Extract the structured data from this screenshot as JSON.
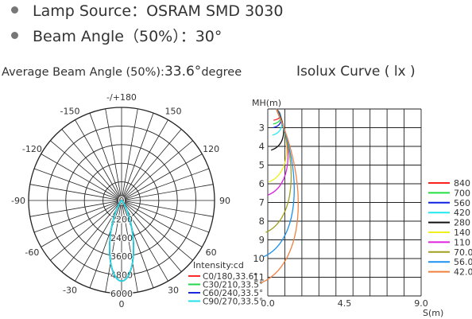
{
  "specs": {
    "lamp_source": "Lamp Source：OSRAM SMD 3030",
    "beam_angle": "Beam Angle（50%）：30°"
  },
  "headings": {
    "avg_beam_label": "Average Beam Angle (50%):",
    "avg_beam_value": "33.6°",
    "avg_beam_unit": "degree",
    "isolux_title": "Isolux Curve ( lx )"
  },
  "chart_data": [
    {
      "type": "polar",
      "angle_labels": [
        {
          "angle": 0,
          "text": "-/+180"
        },
        {
          "angle": 30,
          "text": "150"
        },
        {
          "angle": 60,
          "text": "120"
        },
        {
          "angle": 90,
          "text": "90"
        },
        {
          "angle": 120,
          "text": "60"
        },
        {
          "angle": 150,
          "text": "30"
        },
        {
          "angle": 180,
          "text": "0"
        },
        {
          "angle": -150,
          "text": "-30"
        },
        {
          "angle": -120,
          "text": "-60"
        },
        {
          "angle": -90,
          "text": "-90"
        },
        {
          "angle": -60,
          "text": "-120"
        },
        {
          "angle": -30,
          "text": "-150"
        }
      ],
      "radial_labels": [
        "0",
        "1200",
        "2400",
        "3600",
        "4800",
        "6000"
      ],
      "r_max": 6000,
      "legend_title": "Intensity:cd",
      "series": [
        {
          "name": "C0/180,33.6°",
          "color": "#ff2a2a",
          "peak": 5200,
          "half_angle": 16.8
        },
        {
          "name": "C30/210,33.5°",
          "color": "#22d84a",
          "peak": 5200,
          "half_angle": 16.75
        },
        {
          "name": "C60/240,33.5°",
          "color": "#1a2ad8",
          "peak": 5200,
          "half_angle": 16.75
        },
        {
          "name": "C90/270,33.5°",
          "color": "#22e0e8",
          "peak": 5200,
          "half_angle": 16.75
        }
      ]
    },
    {
      "type": "line",
      "title": "Isolux Curve ( lx )",
      "ylabel": "MH(m)",
      "xlabel": "S(m)",
      "x_ticks": [
        "0.0",
        "4.5",
        "9.0"
      ],
      "y_ticks": [
        "3",
        "4",
        "5",
        "6",
        "7",
        "8",
        "9",
        "10",
        "11"
      ],
      "xlim": [
        0,
        9
      ],
      "ylim": [
        2,
        12
      ],
      "grid": true,
      "legend_position": "right",
      "series": [
        {
          "name": "840",
          "color": "#ff2020",
          "depth": 2.6,
          "width": 0.3
        },
        {
          "name": "700",
          "color": "#20e040",
          "depth": 2.8,
          "width": 0.33
        },
        {
          "name": "560",
          "color": "#1020e0",
          "depth": 3.0,
          "width": 0.36
        },
        {
          "name": "420",
          "color": "#20e8f0",
          "depth": 3.4,
          "width": 0.42
        },
        {
          "name": "280",
          "color": "#111111",
          "depth": 4.2,
          "width": 0.55
        },
        {
          "name": "140",
          "color": "#f0f020",
          "depth": 5.9,
          "width": 0.78
        },
        {
          "name": "110",
          "color": "#e020e0",
          "depth": 6.6,
          "width": 0.88
        },
        {
          "name": "70.0",
          "color": "#a0a020",
          "depth": 8.6,
          "width": 1.12
        },
        {
          "name": "56.0",
          "color": "#1a90f0",
          "depth": 9.9,
          "width": 1.35
        },
        {
          "name": "42.0",
          "color": "#f08040",
          "depth": 11.3,
          "width": 1.65
        }
      ]
    }
  ]
}
